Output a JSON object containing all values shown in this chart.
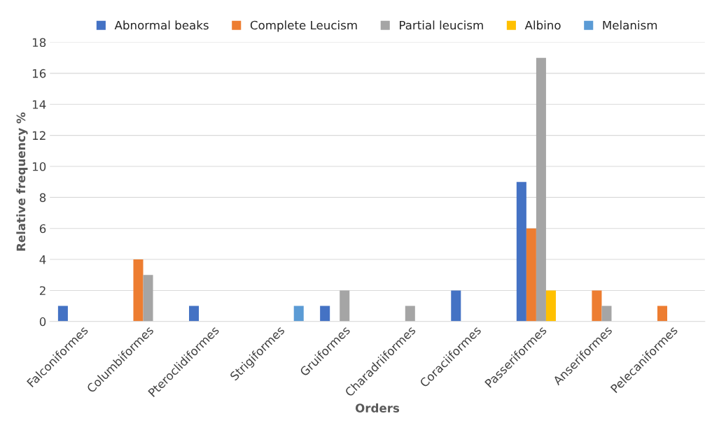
{
  "chart_data": {
    "type": "bar",
    "xlabel": "Orders",
    "ylabel": "Relative frequency %",
    "categories": [
      "Falconiformes",
      "Columbiformes",
      "Pteroclidiformes",
      "Strigiformes",
      "Gruiformes",
      "Charadriiformes",
      "Coraciiformes",
      "Passeriformes",
      "Anseriformes",
      "Pelecaniformes"
    ],
    "series": [
      {
        "name": "Abnormal beaks",
        "color": "#4472c4",
        "values": [
          1,
          0,
          1,
          0,
          1,
          0,
          2,
          9,
          0,
          0
        ]
      },
      {
        "name": "Complete Leucism",
        "color": "#ed7d31",
        "values": [
          0,
          4,
          0,
          0,
          0,
          0,
          0,
          6,
          2,
          1
        ]
      },
      {
        "name": "Partial leucism",
        "color": "#a5a5a5",
        "values": [
          0,
          3,
          0,
          0,
          2,
          1,
          0,
          17,
          1,
          0
        ]
      },
      {
        "name": "Albino",
        "color": "#ffc000",
        "values": [
          0,
          0,
          0,
          0,
          0,
          0,
          0,
          2,
          0,
          0
        ]
      },
      {
        "name": "Melanism",
        "color": "#5b9bd5",
        "values": [
          0,
          0,
          0,
          1,
          0,
          0,
          0,
          0,
          0,
          0
        ]
      }
    ],
    "ylim": [
      0,
      18
    ],
    "yticks": [
      0,
      2,
      4,
      6,
      8,
      10,
      12,
      14,
      16,
      18
    ],
    "grid": "y",
    "legend": "top"
  }
}
